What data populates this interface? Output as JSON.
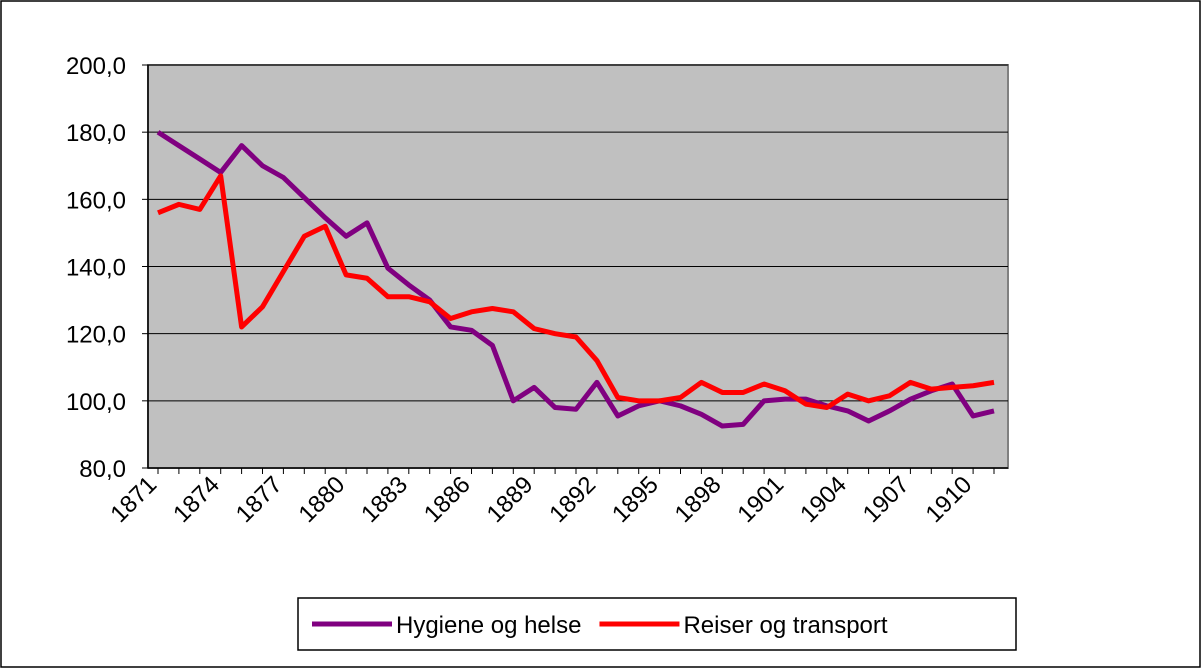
{
  "chart_data": {
    "type": "line",
    "categories": [
      "1871",
      null,
      null,
      "1874",
      null,
      null,
      "1877",
      null,
      null,
      "1880",
      null,
      null,
      "1883",
      null,
      null,
      "1886",
      null,
      null,
      "1889",
      null,
      null,
      "1892",
      null,
      null,
      "1895",
      null,
      null,
      "1898",
      null,
      null,
      "1901",
      null,
      null,
      "1904",
      null,
      null,
      "1907",
      null,
      null,
      "1910",
      null
    ],
    "series": [
      {
        "name": "Hygiene og helse",
        "color": "#800080",
        "values": [
          180,
          176,
          172,
          168,
          176,
          170,
          166.5,
          160.5,
          154.5,
          149,
          153,
          139.5,
          134.5,
          130,
          122,
          121,
          116.5,
          100,
          104,
          98,
          97.5,
          105.5,
          95.5,
          98.5,
          100,
          98.5,
          96,
          92.5,
          93,
          100,
          100.5,
          100.5,
          98.5,
          97,
          94,
          97,
          100.5,
          103,
          105,
          95.5,
          97
        ]
      },
      {
        "name": "Reiser og transport",
        "color": "#ff0000",
        "values": [
          156,
          158.5,
          157,
          167,
          122,
          128,
          138.5,
          149,
          152,
          137.5,
          136.5,
          131,
          131,
          129.5,
          124.5,
          126.5,
          127.5,
          126.5,
          121.5,
          120,
          119,
          112,
          101,
          100,
          100,
          101,
          105.5,
          102.5,
          102.5,
          105,
          103,
          99,
          98,
          102,
          100,
          101.5,
          105.5,
          103.5,
          104,
          104.5,
          105.5
        ]
      }
    ],
    "ylim": [
      80,
      200
    ],
    "yticks": [
      {
        "value": 80,
        "label": "80,0"
      },
      {
        "value": 100,
        "label": "100,0"
      },
      {
        "value": 120,
        "label": "120,0"
      },
      {
        "value": 140,
        "label": "140,0"
      },
      {
        "value": 160,
        "label": "160,0"
      },
      {
        "value": 180,
        "label": "180,0"
      },
      {
        "value": 200,
        "label": "200,0"
      }
    ],
    "grid": true,
    "plot_background": "#c0c0c0",
    "legend": "bottom"
  }
}
